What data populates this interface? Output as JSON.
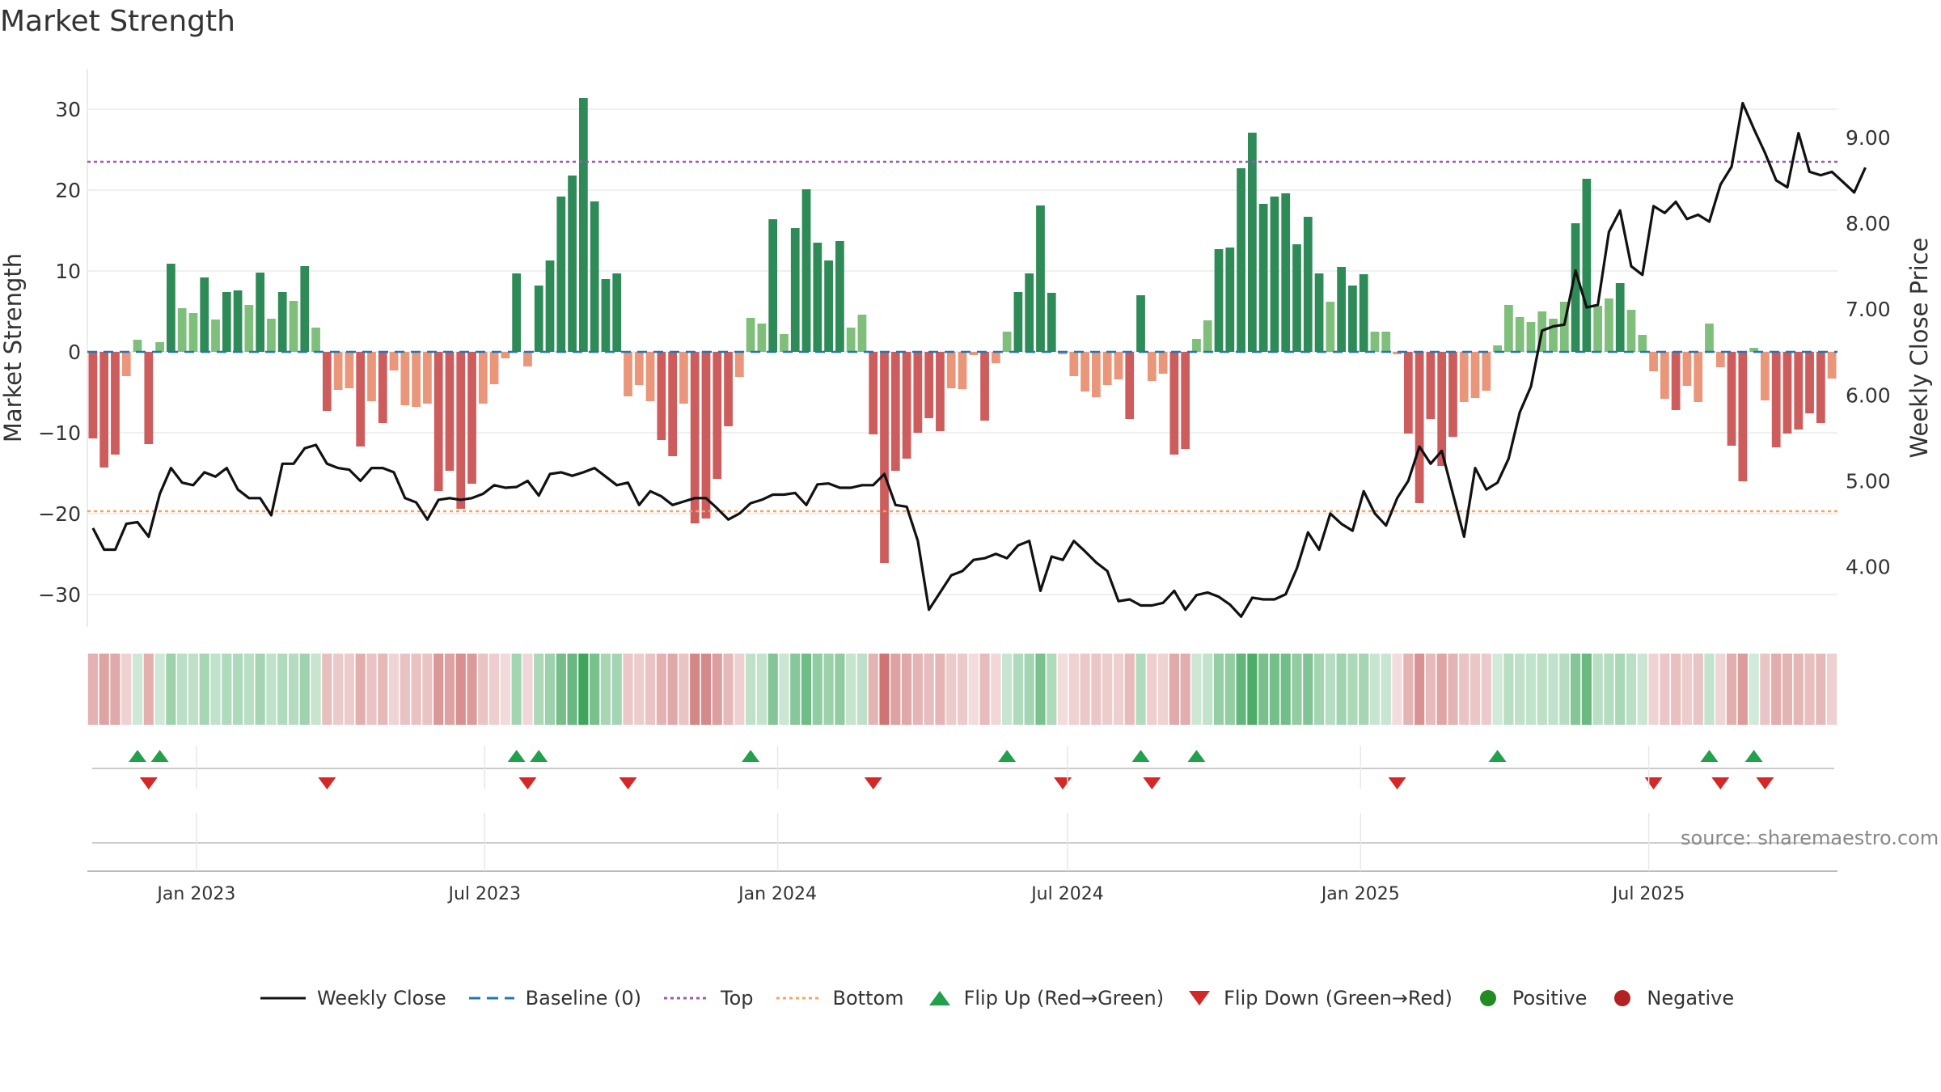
{
  "chart_data": {
    "type": "bar",
    "title": "Market Strength",
    "source": "source: sharemaestro.com",
    "ylabel_left": "Market Strength",
    "ylabel_right": "Weekly Close Price",
    "ylim_left": [
      -34,
      35
    ],
    "ylim_right": [
      3.3,
      9.8
    ],
    "yticks_left": [
      30,
      20,
      10,
      0,
      -10,
      -20,
      -30
    ],
    "yticks_left_labels": [
      "30",
      "20",
      "10",
      "0",
      "−10",
      "−20",
      "−30"
    ],
    "yticks_right": [
      9,
      8,
      7,
      6,
      5,
      4
    ],
    "yticks_right_labels": [
      "9.00",
      "8.00",
      "7.00",
      "6.00",
      "5.00",
      "4.00"
    ],
    "top_line": 23.5,
    "bottom_line": -19.7,
    "x_start": "2022-10-28",
    "x_ticks": [
      "2023-01-01",
      "2023-07-01",
      "2024-01-01",
      "2024-07-01",
      "2025-01-01",
      "2025-07-01"
    ],
    "x_tick_labels": [
      "Jan 2023",
      "Jul 2023",
      "Jan 2024",
      "Jul 2024",
      "Jan 2025",
      "Jul 2025"
    ],
    "strength": [
      -10.7,
      -14.3,
      -12.7,
      -3,
      1.5,
      -11.4,
      1.2,
      10.9,
      5.4,
      4.8,
      9.2,
      4,
      7.4,
      7.6,
      5.8,
      9.8,
      4.1,
      7.4,
      6.3,
      10.6,
      3,
      -7.3,
      -4.7,
      -4.5,
      -11.7,
      -6.1,
      -8.8,
      -2.3,
      -6.6,
      -6.8,
      -6.4,
      -17.2,
      -14.7,
      -19.4,
      -16.3,
      -6.4,
      -4,
      -0.8,
      9.7,
      -1.8,
      8.2,
      11.3,
      19.2,
      21.8,
      31.4,
      18.6,
      9,
      9.7,
      -5.5,
      -4.1,
      -6.1,
      -10.9,
      -12.9,
      -6.4,
      -21.2,
      -20.6,
      -15.7,
      -9.2,
      -3.1,
      4.2,
      3.5,
      16.4,
      2.2,
      15.3,
      20.1,
      13.5,
      11.3,
      13.7,
      3,
      4.6,
      -10.2,
      -26.1,
      -14.7,
      -13.2,
      -10,
      -8.2,
      -9.8,
      -4.5,
      -4.6,
      -0.4,
      -8.5,
      -1.4,
      2.5,
      7.4,
      9.7,
      18.1,
      7.3,
      -0.3,
      -3,
      -4.9,
      -5.6,
      -4.1,
      -3.4,
      -8.3,
      7,
      -3.6,
      -2.7,
      -12.7,
      -12,
      1.6,
      3.9,
      12.7,
      12.9,
      22.7,
      27.1,
      18.3,
      19.2,
      19.6,
      13.3,
      16.7,
      9.7,
      6.2,
      10.5,
      8.2,
      9.6,
      2.5,
      2.5,
      -0.3,
      -10.1,
      -18.7,
      -8.3,
      -14.1,
      -10.5,
      -6.2,
      -5.7,
      -4.8,
      0.8,
      5.8,
      4.3,
      3.7,
      5,
      4.1,
      6.2,
      15.9,
      21.4,
      5.7,
      6.6,
      8.5,
      5.2,
      2.1,
      -2.4,
      -5.8,
      -7.2,
      -4.2,
      -6.2,
      3.5,
      -1.9,
      -11.6,
      -16,
      0.5,
      -6,
      -11.8,
      -10.1,
      -9.6,
      -7.6,
      -8.8,
      -3.3
    ],
    "weekly_close": [
      4.45,
      4.2,
      4.2,
      4.5,
      4.52,
      4.35,
      4.85,
      5.15,
      4.98,
      4.95,
      5.1,
      5.05,
      5.15,
      4.9,
      4.8,
      4.8,
      4.6,
      5.2,
      5.2,
      5.38,
      5.42,
      5.2,
      5.15,
      5.13,
      5,
      5.15,
      5.15,
      5.1,
      4.8,
      4.75,
      4.55,
      4.78,
      4.8,
      4.78,
      4.8,
      4.85,
      4.95,
      4.92,
      4.93,
      5,
      4.83,
      5.08,
      5.1,
      5.06,
      5.1,
      5.15,
      5.05,
      4.95,
      4.98,
      4.72,
      4.88,
      4.82,
      4.72,
      4.76,
      4.8,
      4.8,
      4.68,
      4.55,
      4.62,
      4.74,
      4.78,
      4.84,
      4.84,
      4.86,
      4.72,
      4.96,
      4.97,
      4.92,
      4.92,
      4.95,
      4.95,
      5.08,
      4.72,
      4.7,
      4.3,
      3.5,
      3.7,
      3.9,
      3.95,
      4.08,
      4.1,
      4.15,
      4.1,
      4.25,
      4.3,
      3.72,
      4.12,
      4.08,
      4.3,
      4.18,
      4.05,
      3.95,
      3.6,
      3.62,
      3.55,
      3.55,
      3.58,
      3.72,
      3.5,
      3.67,
      3.7,
      3.65,
      3.56,
      3.42,
      3.64,
      3.62,
      3.62,
      3.68,
      3.98,
      4.4,
      4.2,
      4.62,
      4.5,
      4.42,
      4.88,
      4.62,
      4.48,
      4.8,
      5,
      5.4,
      5.2,
      5.35,
      4.85,
      4.35,
      5.15,
      4.9,
      4.98,
      5.26,
      5.8,
      6.1,
      6.75,
      6.8,
      6.82,
      7.45,
      7.02,
      7.05,
      7.9,
      8.15,
      7.5,
      7.4,
      8.2,
      8.12,
      8.25,
      8.05,
      8.1,
      8.02,
      8.45,
      8.66,
      9.4,
      9.1,
      8.82,
      8.5,
      8.42,
      9.05,
      8.6,
      8.56,
      8.6,
      8.48,
      8.36,
      8.65
    ],
    "legend": [
      "Weekly Close",
      "Baseline (0)",
      "Top",
      "Bottom",
      "Flip Up (Red→Green)",
      "Flip Down (Green→Red)",
      "Positive",
      "Negative"
    ],
    "colors": {
      "strong_green": "#2e8b57",
      "light_green": "#7fbf7b",
      "strong_red": "#cd5c5c",
      "light_red": "#e9967a",
      "close_line": "#111111",
      "baseline": "#1f77b4",
      "top": "#9b59b6",
      "bottom": "#f4a460",
      "flip_up": "#22a04b",
      "flip_down": "#d62728",
      "positive": "#228b22",
      "negative": "#b22222"
    }
  }
}
